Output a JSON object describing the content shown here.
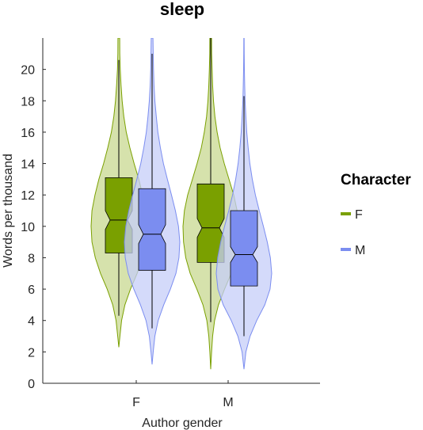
{
  "chart_data": {
    "type": "violin",
    "title": "sleep",
    "xlabel": "Author gender",
    "ylabel": "Words per thousand",
    "categories": [
      "F",
      "M"
    ],
    "ylim": [
      0,
      22
    ],
    "yticks": [
      0,
      2,
      4,
      6,
      8,
      10,
      12,
      14,
      16,
      18,
      20
    ],
    "legend": {
      "title": "Character",
      "position": "right"
    },
    "series": [
      {
        "name": "F",
        "color": "#7aa000",
        "box_color": "#7aa000",
        "violin_fill": "#c8d890",
        "stats": [
          {
            "category": "F",
            "q1": 8.3,
            "median": 10.4,
            "q3": 13.1,
            "notch_low": 9.8,
            "notch_high": 11.0,
            "whisker_low": 4.3,
            "whisker_high": 20.6
          },
          {
            "category": "M",
            "q1": 7.7,
            "median": 9.9,
            "q3": 12.7,
            "notch_low": 9.3,
            "notch_high": 10.5,
            "whisker_low": 3.9,
            "whisker_high": 22.0
          }
        ],
        "density": [
          {
            "category": "F",
            "y": [
              2.3,
              3,
              4,
              5,
              6,
              7,
              8,
              9,
              10,
              11,
              12,
              13,
              14,
              15,
              16,
              17,
              18,
              19,
              20,
              21,
              22
            ],
            "w": [
              0.0,
              0.04,
              0.1,
              0.22,
              0.42,
              0.66,
              0.85,
              0.97,
              1.0,
              0.97,
              0.86,
              0.72,
              0.55,
              0.4,
              0.27,
              0.18,
              0.12,
              0.08,
              0.05,
              0.035,
              0.03
            ]
          },
          {
            "category": "M",
            "y": [
              0.9,
              2,
              3,
              4,
              5,
              6,
              7,
              8,
              9,
              10,
              11,
              12,
              13,
              14,
              15,
              16,
              17,
              18,
              19,
              20,
              21,
              22
            ],
            "w": [
              0.0,
              0.03,
              0.07,
              0.14,
              0.28,
              0.5,
              0.74,
              0.9,
              0.98,
              1.0,
              0.95,
              0.83,
              0.66,
              0.49,
              0.34,
              0.23,
              0.15,
              0.1,
              0.07,
              0.05,
              0.035,
              0.03
            ]
          }
        ]
      },
      {
        "name": "M",
        "color": "#7b8df0",
        "box_color": "#7b8df0",
        "violin_fill": "#c6cdf8",
        "stats": [
          {
            "category": "F",
            "q1": 7.2,
            "median": 9.5,
            "q3": 12.4,
            "notch_low": 8.9,
            "notch_high": 10.1,
            "whisker_low": 3.5,
            "whisker_high": 21.0
          },
          {
            "category": "M",
            "q1": 6.2,
            "median": 8.2,
            "q3": 11.0,
            "notch_low": 7.7,
            "notch_high": 8.7,
            "whisker_low": 3.0,
            "whisker_high": 18.3
          }
        ],
        "density": [
          {
            "category": "F",
            "y": [
              1.2,
              2,
              3,
              4,
              5,
              6,
              7,
              8,
              9,
              10,
              11,
              12,
              13,
              14,
              15,
              16,
              17,
              18,
              19,
              20,
              21,
              22
            ],
            "w": [
              0.0,
              0.04,
              0.1,
              0.22,
              0.42,
              0.66,
              0.86,
              0.97,
              1.0,
              0.95,
              0.84,
              0.7,
              0.55,
              0.41,
              0.3,
              0.21,
              0.15,
              0.1,
              0.07,
              0.05,
              0.04,
              0.03
            ]
          },
          {
            "category": "M",
            "y": [
              0.9,
              2,
              3,
              4,
              5,
              6,
              7,
              8,
              9,
              10,
              11,
              12,
              13,
              14,
              15,
              16,
              17,
              18,
              19,
              20,
              21,
              22
            ],
            "w": [
              0.0,
              0.07,
              0.22,
              0.46,
              0.75,
              0.94,
              1.0,
              0.95,
              0.84,
              0.7,
              0.55,
              0.41,
              0.3,
              0.21,
              0.15,
              0.1,
              0.07,
              0.04,
              0.025,
              0.015,
              0.008,
              0.005
            ]
          }
        ]
      }
    ]
  }
}
